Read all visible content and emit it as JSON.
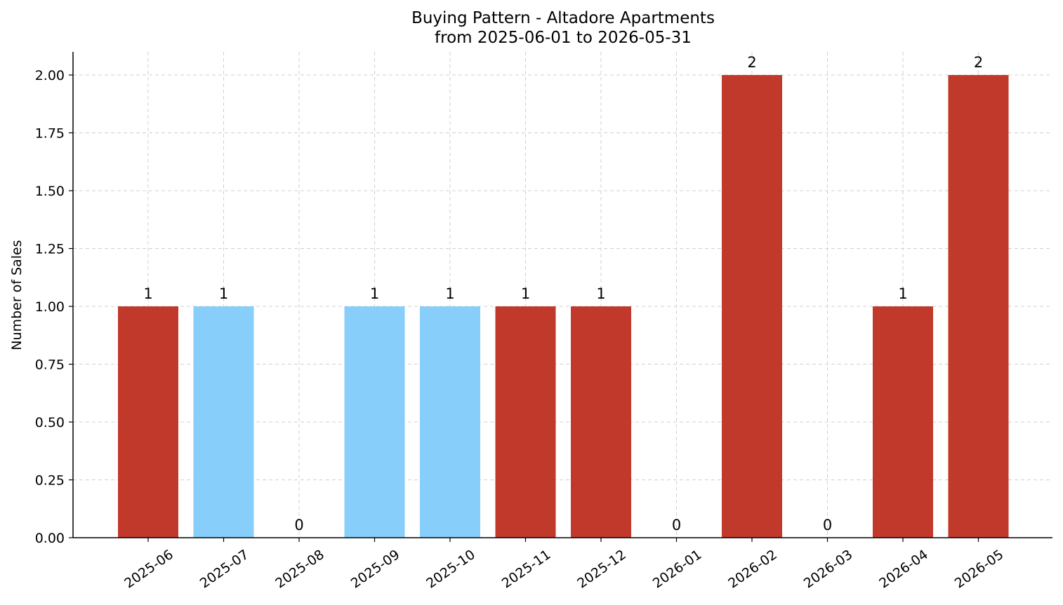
{
  "chart_data": {
    "type": "bar",
    "title": "Buying Pattern - Altadore Apartments",
    "subtitle": "from 2025-06-01 to 2026-05-31",
    "xlabel": "",
    "ylabel": "Number of Sales",
    "categories": [
      "2025-06",
      "2025-07",
      "2025-08",
      "2025-09",
      "2025-10",
      "2025-11",
      "2025-12",
      "2026-01",
      "2026-02",
      "2026-03",
      "2026-04",
      "2026-05"
    ],
    "values": [
      1,
      1,
      0,
      1,
      1,
      1,
      1,
      0,
      2,
      0,
      1,
      2
    ],
    "data_labels": [
      "1",
      "1",
      "0",
      "1",
      "1",
      "1",
      "1",
      "0",
      "2",
      "0",
      "1",
      "2"
    ],
    "bar_colors": [
      "#c0392b",
      "#87cefa",
      "#87cefa",
      "#87cefa",
      "#87cefa",
      "#c0392b",
      "#c0392b",
      "#c0392b",
      "#c0392b",
      "#c0392b",
      "#c0392b",
      "#c0392b"
    ],
    "ylim": [
      0,
      2.1
    ],
    "yticks": [
      0,
      0.25,
      0.5,
      0.75,
      1.0,
      1.25,
      1.5,
      1.75,
      2.0
    ],
    "ytick_labels": [
      "0.00",
      "0.25",
      "0.50",
      "0.75",
      "1.00",
      "1.25",
      "1.50",
      "1.75",
      "2.00"
    ],
    "grid": true,
    "legend": "none"
  }
}
